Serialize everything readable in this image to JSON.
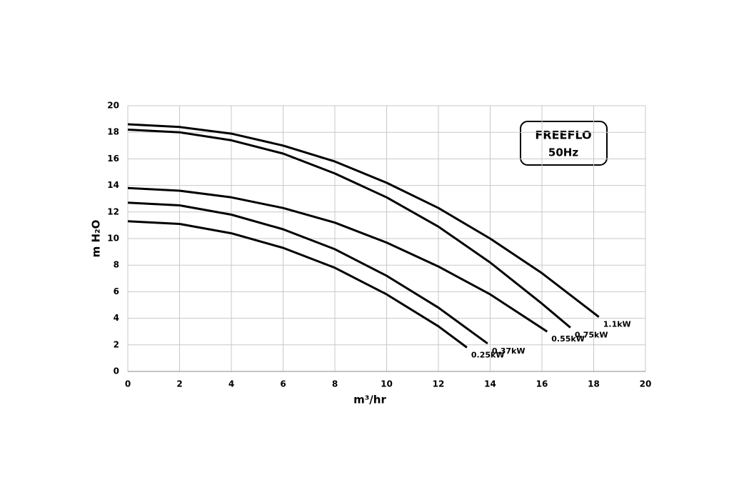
{
  "chart_data": {
    "type": "line",
    "xlabel": "m³/hr",
    "ylabel": "m H₂O",
    "annotations": [
      "FREEFLO",
      "50Hz"
    ],
    "xlim": [
      0,
      20
    ],
    "xticks": [
      0,
      2,
      4,
      6,
      8,
      10,
      12,
      14,
      16,
      18,
      20
    ],
    "ylim": [
      0,
      20
    ],
    "yticks": [
      0,
      2,
      4,
      6,
      8,
      10,
      12,
      14,
      16,
      18,
      20
    ],
    "grid": true,
    "series": [
      {
        "name": "1.1kW",
        "color": "#000000",
        "x": [
          0,
          2,
          4,
          6,
          8,
          10,
          12,
          14,
          16,
          18.2
        ],
        "values": [
          18.6,
          18.4,
          17.9,
          17.0,
          15.8,
          14.2,
          12.3,
          10.0,
          7.4,
          4.1
        ]
      },
      {
        "name": "0.75kW",
        "color": "#000000",
        "x": [
          0,
          2,
          4,
          6,
          8,
          10,
          12,
          14,
          16,
          17.1
        ],
        "values": [
          18.2,
          18.0,
          17.4,
          16.4,
          14.9,
          13.1,
          10.9,
          8.2,
          5.1,
          3.3
        ]
      },
      {
        "name": "0.55kW",
        "color": "#000000",
        "x": [
          0,
          2,
          4,
          6,
          8,
          10,
          12,
          14,
          16.2
        ],
        "values": [
          13.8,
          13.6,
          13.1,
          12.3,
          11.2,
          9.7,
          7.9,
          5.8,
          3.0
        ]
      },
      {
        "name": "0.37kW",
        "color": "#000000",
        "x": [
          0,
          2,
          4,
          6,
          8,
          10,
          12,
          13.9
        ],
        "values": [
          12.7,
          12.5,
          11.8,
          10.7,
          9.2,
          7.2,
          4.8,
          2.1
        ]
      },
      {
        "name": "0.25kW",
        "color": "#000000",
        "x": [
          0,
          2,
          4,
          6,
          8,
          10,
          12,
          13.1
        ],
        "values": [
          11.3,
          11.1,
          10.4,
          9.3,
          7.8,
          5.8,
          3.4,
          1.8
        ]
      }
    ]
  }
}
